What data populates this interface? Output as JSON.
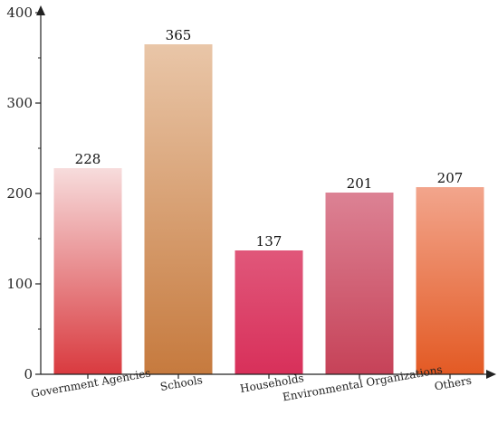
{
  "chart_data": {
    "type": "bar",
    "title": "",
    "xlabel": "",
    "ylabel": "",
    "categories": [
      "Government Agencies",
      "Schools",
      "Households",
      "Environmental Organizations",
      "Others"
    ],
    "values": [
      228,
      365,
      137,
      201,
      207
    ],
    "ylim": [
      0,
      400
    ],
    "yticks": [
      0,
      100,
      200,
      300,
      400
    ],
    "ytick_labels": [
      "0",
      "100",
      "200",
      "300",
      "400"
    ],
    "grid": false,
    "legend": "none",
    "bar_gradients": [
      {
        "top": "#f7dcdc",
        "bottom": "#d93a3f"
      },
      {
        "top": "#e9c6a8",
        "bottom": "#c67a3e"
      },
      {
        "top": "#e0577a",
        "bottom": "#d8305a"
      },
      {
        "top": "#dc8294",
        "bottom": "#c64258"
      },
      {
        "top": "#f2a58c",
        "bottom": "#e35a24"
      }
    ]
  }
}
